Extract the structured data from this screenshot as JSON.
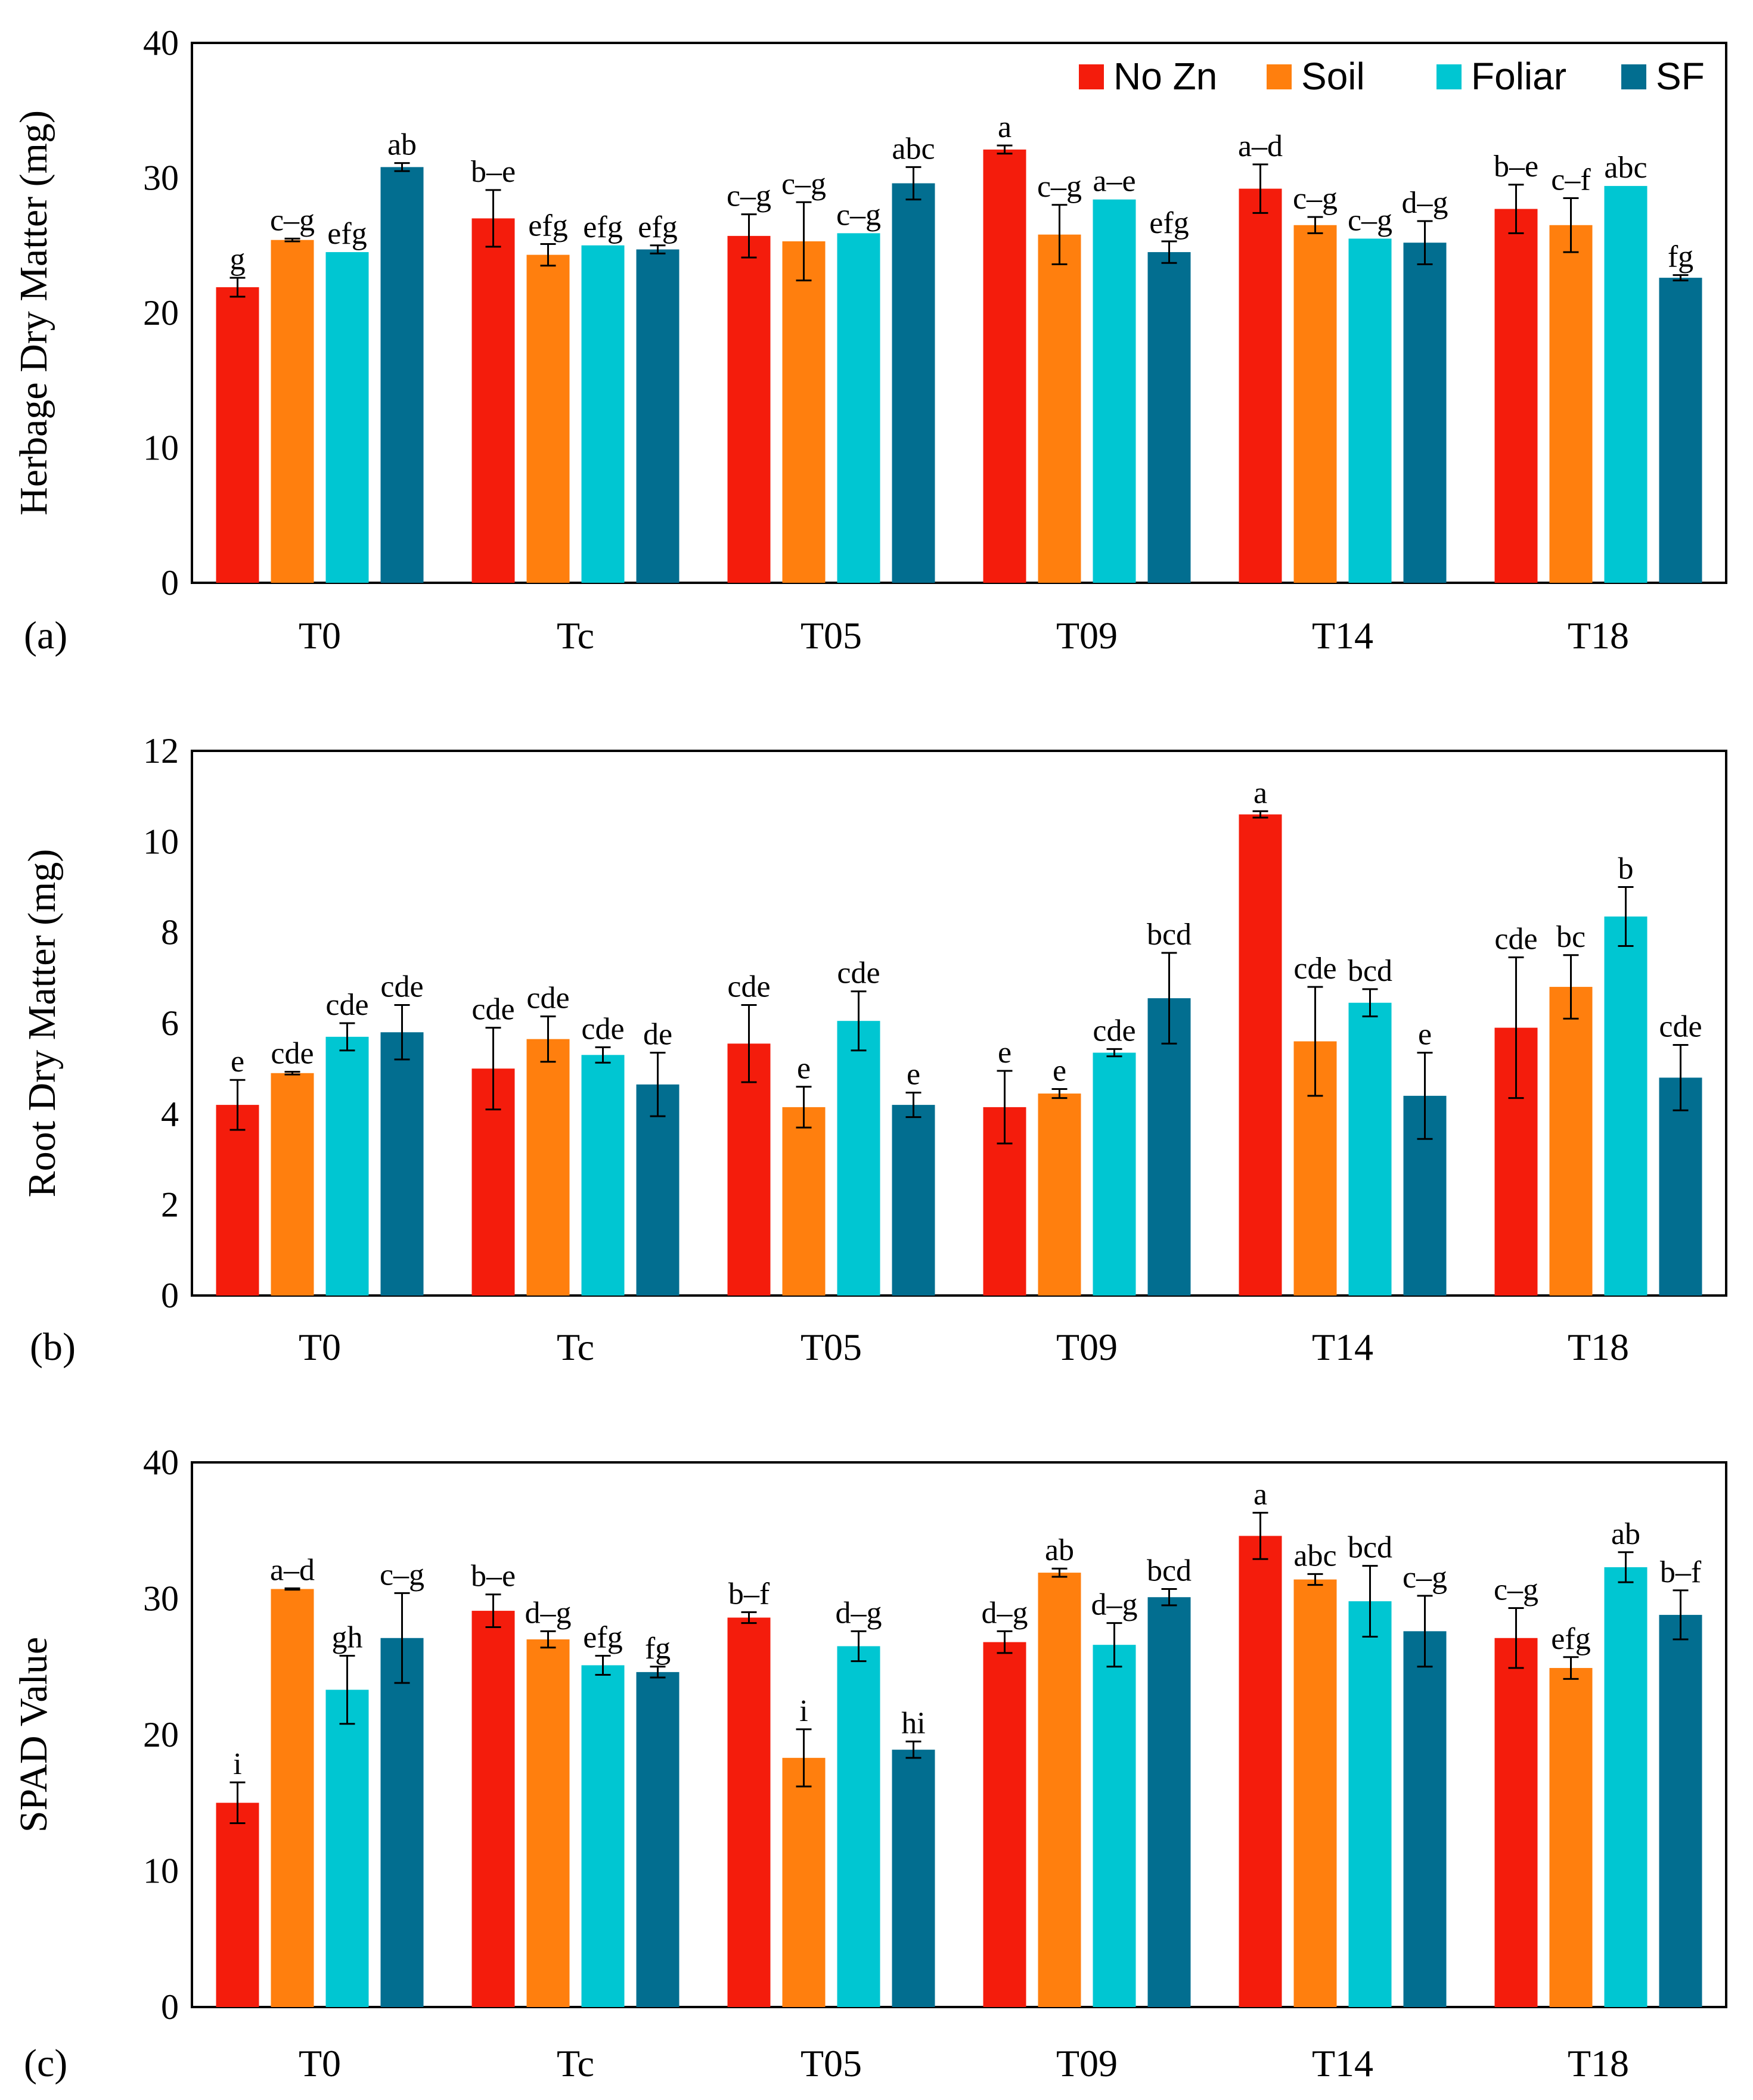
{
  "colors": {
    "No Zn": "#f41c0c",
    "Soil": "#ff7f0e",
    "Foliar": "#00c6d2",
    "SF": "#026e90"
  },
  "legend": [
    "No Zn",
    "Soil",
    "Foliar",
    "SF"
  ],
  "chart_data": [
    {
      "type": "bar",
      "panel": "(a)",
      "ylabel": "Herbage Dry Matter (mg)",
      "ylim": [
        0,
        40
      ],
      "yticks": [
        0,
        10,
        20,
        30,
        40
      ],
      "categories": [
        "T0",
        "Tc",
        "T05",
        "T09",
        "T14",
        "T18"
      ],
      "series": [
        {
          "name": "No Zn",
          "values": [
            21.9,
            27.0,
            25.7,
            32.1,
            29.2,
            27.7
          ],
          "errors": [
            0.7,
            2.1,
            1.6,
            0.3,
            1.8,
            1.8
          ],
          "letters": [
            "g",
            "b–e",
            "c–g",
            "a",
            "a–d",
            "b–e"
          ]
        },
        {
          "name": "Soil",
          "values": [
            25.4,
            24.3,
            25.3,
            25.8,
            26.5,
            26.5
          ],
          "errors": [
            0.1,
            0.8,
            2.9,
            2.2,
            0.6,
            2.0
          ],
          "letters": [
            "c–g",
            "efg",
            "c–g",
            "c–g",
            "c–g",
            "c–f"
          ]
        },
        {
          "name": "Foliar",
          "values": [
            24.5,
            25.0,
            25.9,
            28.4,
            25.5,
            29.4
          ],
          "errors": [
            0,
            0,
            0,
            0,
            0,
            0
          ],
          "letters": [
            "efg",
            "efg",
            "c–g",
            "a–e",
            "c–g",
            "abc"
          ]
        },
        {
          "name": "SF",
          "values": [
            30.8,
            24.7,
            29.6,
            24.5,
            25.2,
            22.6
          ],
          "errors": [
            0.3,
            0.3,
            1.2,
            0.8,
            1.6,
            0.2
          ],
          "letters": [
            "ab",
            "efg",
            "abc",
            "efg",
            "d–g",
            "fg"
          ]
        }
      ]
    },
    {
      "type": "bar",
      "panel": "(b)",
      "ylabel": "Root Dry Matter (mg)",
      "ylim": [
        0,
        12
      ],
      "yticks": [
        0,
        2,
        4,
        6,
        8,
        10,
        12
      ],
      "categories": [
        "T0",
        "Tc",
        "T05",
        "T09",
        "T14",
        "T18"
      ],
      "series": [
        {
          "name": "No Zn",
          "values": [
            4.2,
            5.0,
            5.55,
            4.15,
            10.6,
            5.9
          ],
          "errors": [
            0.55,
            0.9,
            0.85,
            0.8,
            0.07,
            1.55
          ],
          "letters": [
            "e",
            "cde",
            "cde",
            "e",
            "a",
            "cde"
          ]
        },
        {
          "name": "Soil",
          "values": [
            4.9,
            5.65,
            4.15,
            4.45,
            5.6,
            6.8
          ],
          "errors": [
            0.03,
            0.5,
            0.45,
            0.1,
            1.2,
            0.7
          ],
          "letters": [
            "cde",
            "cde",
            "e",
            "e",
            "cde",
            "bc"
          ]
        },
        {
          "name": "Foliar",
          "values": [
            5.7,
            5.3,
            6.05,
            5.35,
            6.45,
            8.35
          ],
          "errors": [
            0.3,
            0.17,
            0.65,
            0.08,
            0.3,
            0.65
          ],
          "letters": [
            "cde",
            "cde",
            "cde",
            "cde",
            "bcd",
            "b"
          ]
        },
        {
          "name": "SF",
          "values": [
            5.8,
            4.65,
            4.2,
            6.55,
            4.4,
            4.8
          ],
          "errors": [
            0.6,
            0.7,
            0.27,
            1.0,
            0.95,
            0.72
          ],
          "letters": [
            "cde",
            "de",
            "e",
            "bcd",
            "e",
            "cde"
          ]
        }
      ]
    },
    {
      "type": "bar",
      "panel": "(c)",
      "ylabel": "SPAD Value",
      "ylim": [
        0,
        40
      ],
      "yticks": [
        0,
        10,
        20,
        30,
        40
      ],
      "categories": [
        "T0",
        "Tc",
        "T05",
        "T09",
        "T14",
        "T18"
      ],
      "series": [
        {
          "name": "No Zn",
          "values": [
            15.0,
            29.1,
            28.6,
            26.8,
            34.6,
            27.1
          ],
          "errors": [
            1.5,
            1.2,
            0.4,
            0.8,
            1.7,
            2.2
          ],
          "letters": [
            "i",
            "b–e",
            "b–f",
            "d–g",
            "a",
            "c–g"
          ]
        },
        {
          "name": "Soil",
          "values": [
            30.7,
            27.0,
            18.3,
            31.9,
            31.4,
            24.9
          ],
          "errors": [
            0.05,
            0.6,
            2.1,
            0.3,
            0.4,
            0.8
          ],
          "letters": [
            "a–d",
            "d–g",
            "i",
            "ab",
            "abc",
            "efg"
          ]
        },
        {
          "name": "Foliar",
          "values": [
            23.3,
            25.1,
            26.5,
            26.6,
            29.8,
            32.3
          ],
          "errors": [
            2.5,
            0.7,
            1.1,
            1.6,
            2.6,
            1.1
          ],
          "letters": [
            "gh",
            "efg",
            "d–g",
            "d–g",
            "bcd",
            "ab"
          ]
        },
        {
          "name": "SF",
          "values": [
            27.1,
            24.6,
            18.9,
            30.1,
            27.6,
            28.8
          ],
          "errors": [
            3.3,
            0.4,
            0.6,
            0.6,
            2.6,
            1.8
          ],
          "letters": [
            "c–g",
            "fg",
            "hi",
            "bcd",
            "c–g",
            "b–f"
          ]
        }
      ]
    }
  ]
}
